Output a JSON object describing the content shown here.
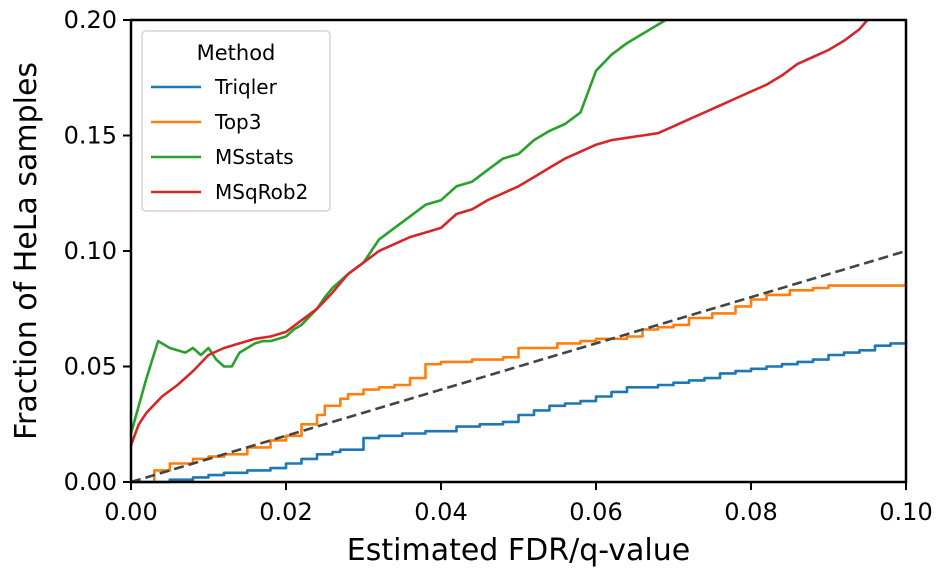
{
  "chart_data": {
    "type": "line",
    "xlabel": "Estimated FDR/q-value",
    "ylabel": "Fraction of HeLa samples",
    "xlim": [
      0.0,
      0.1
    ],
    "ylim": [
      0.0,
      0.2
    ],
    "xticks": [
      0.0,
      0.02,
      0.04,
      0.06,
      0.08,
      0.1
    ],
    "yticks": [
      0.0,
      0.05,
      0.1,
      0.15,
      0.2
    ],
    "xtick_labels": [
      "0.00",
      "0.02",
      "0.04",
      "0.06",
      "0.08",
      "0.10"
    ],
    "ytick_labels": [
      "0.00",
      "0.05",
      "0.10",
      "0.15",
      "0.20"
    ],
    "grid": false,
    "legend": {
      "title": "Method",
      "placement": "top-left"
    },
    "series": [
      {
        "name": "Triqler",
        "color": "#1f77b4",
        "style": "step",
        "x": [
          0.0,
          0.005,
          0.008,
          0.01,
          0.012,
          0.015,
          0.018,
          0.02,
          0.022,
          0.024,
          0.026,
          0.027,
          0.028,
          0.03,
          0.032,
          0.035,
          0.038,
          0.04,
          0.042,
          0.045,
          0.048,
          0.05,
          0.052,
          0.054,
          0.056,
          0.058,
          0.06,
          0.062,
          0.064,
          0.066,
          0.068,
          0.07,
          0.072,
          0.074,
          0.076,
          0.078,
          0.08,
          0.082,
          0.084,
          0.086,
          0.088,
          0.09,
          0.092,
          0.094,
          0.096,
          0.098,
          0.1
        ],
        "y": [
          0.0,
          0.001,
          0.002,
          0.003,
          0.004,
          0.005,
          0.006,
          0.008,
          0.01,
          0.012,
          0.013,
          0.014,
          0.014,
          0.019,
          0.02,
          0.021,
          0.022,
          0.022,
          0.024,
          0.025,
          0.026,
          0.029,
          0.031,
          0.033,
          0.034,
          0.035,
          0.037,
          0.039,
          0.041,
          0.041,
          0.042,
          0.043,
          0.044,
          0.045,
          0.047,
          0.048,
          0.049,
          0.05,
          0.051,
          0.052,
          0.053,
          0.055,
          0.056,
          0.057,
          0.059,
          0.06,
          0.061
        ]
      },
      {
        "name": "Top3",
        "color": "#ff7f0e",
        "style": "step",
        "x": [
          0.0,
          0.003,
          0.005,
          0.008,
          0.01,
          0.012,
          0.015,
          0.018,
          0.02,
          0.022,
          0.024,
          0.025,
          0.027,
          0.028,
          0.03,
          0.032,
          0.034,
          0.036,
          0.038,
          0.04,
          0.042,
          0.044,
          0.046,
          0.048,
          0.05,
          0.052,
          0.055,
          0.058,
          0.06,
          0.062,
          0.064,
          0.066,
          0.068,
          0.07,
          0.072,
          0.075,
          0.078,
          0.08,
          0.082,
          0.085,
          0.088,
          0.09,
          0.095,
          0.1
        ],
        "y": [
          0.0,
          0.005,
          0.008,
          0.01,
          0.011,
          0.012,
          0.015,
          0.018,
          0.02,
          0.025,
          0.029,
          0.033,
          0.036,
          0.038,
          0.04,
          0.041,
          0.042,
          0.045,
          0.051,
          0.052,
          0.052,
          0.053,
          0.053,
          0.054,
          0.058,
          0.058,
          0.06,
          0.061,
          0.062,
          0.062,
          0.063,
          0.066,
          0.067,
          0.068,
          0.071,
          0.073,
          0.076,
          0.079,
          0.081,
          0.083,
          0.084,
          0.085,
          0.085,
          0.087
        ]
      },
      {
        "name": "MSstats",
        "color": "#2ca02c",
        "style": "line",
        "x": [
          0.0,
          0.002,
          0.0035,
          0.005,
          0.007,
          0.008,
          0.009,
          0.01,
          0.011,
          0.012,
          0.013,
          0.014,
          0.015,
          0.016,
          0.017,
          0.018,
          0.02,
          0.021,
          0.022,
          0.024,
          0.025,
          0.026,
          0.028,
          0.03,
          0.032,
          0.034,
          0.036,
          0.038,
          0.04,
          0.042,
          0.044,
          0.046,
          0.048,
          0.05,
          0.052,
          0.054,
          0.056,
          0.058,
          0.06,
          0.062,
          0.064,
          0.066,
          0.068,
          0.069
        ],
        "y": [
          0.021,
          0.045,
          0.061,
          0.058,
          0.056,
          0.058,
          0.055,
          0.058,
          0.053,
          0.05,
          0.05,
          0.056,
          0.058,
          0.06,
          0.061,
          0.061,
          0.063,
          0.066,
          0.068,
          0.075,
          0.08,
          0.084,
          0.09,
          0.095,
          0.105,
          0.11,
          0.115,
          0.12,
          0.122,
          0.128,
          0.13,
          0.135,
          0.14,
          0.142,
          0.148,
          0.152,
          0.155,
          0.16,
          0.178,
          0.185,
          0.19,
          0.194,
          0.198,
          0.2
        ]
      },
      {
        "name": "MSqRob2",
        "color": "#d62728",
        "style": "line",
        "x": [
          0.0,
          0.001,
          0.002,
          0.004,
          0.006,
          0.008,
          0.01,
          0.012,
          0.014,
          0.016,
          0.018,
          0.02,
          0.022,
          0.024,
          0.026,
          0.028,
          0.03,
          0.032,
          0.034,
          0.036,
          0.038,
          0.04,
          0.042,
          0.044,
          0.046,
          0.048,
          0.05,
          0.052,
          0.054,
          0.056,
          0.058,
          0.06,
          0.062,
          0.064,
          0.066,
          0.068,
          0.07,
          0.072,
          0.074,
          0.076,
          0.078,
          0.08,
          0.082,
          0.084,
          0.086,
          0.088,
          0.09,
          0.092,
          0.094,
          0.095
        ],
        "y": [
          0.016,
          0.025,
          0.03,
          0.037,
          0.042,
          0.048,
          0.055,
          0.058,
          0.06,
          0.062,
          0.063,
          0.065,
          0.07,
          0.075,
          0.082,
          0.09,
          0.095,
          0.1,
          0.103,
          0.106,
          0.108,
          0.11,
          0.116,
          0.118,
          0.122,
          0.125,
          0.128,
          0.132,
          0.136,
          0.14,
          0.143,
          0.146,
          0.148,
          0.149,
          0.15,
          0.151,
          0.154,
          0.157,
          0.16,
          0.163,
          0.166,
          0.169,
          0.172,
          0.176,
          0.181,
          0.184,
          0.187,
          0.191,
          0.196,
          0.2
        ]
      }
    ],
    "reference_line": {
      "style": "dashed",
      "color": "#444444",
      "x": [
        0.0,
        0.1
      ],
      "y": [
        0.0,
        0.1
      ]
    }
  }
}
